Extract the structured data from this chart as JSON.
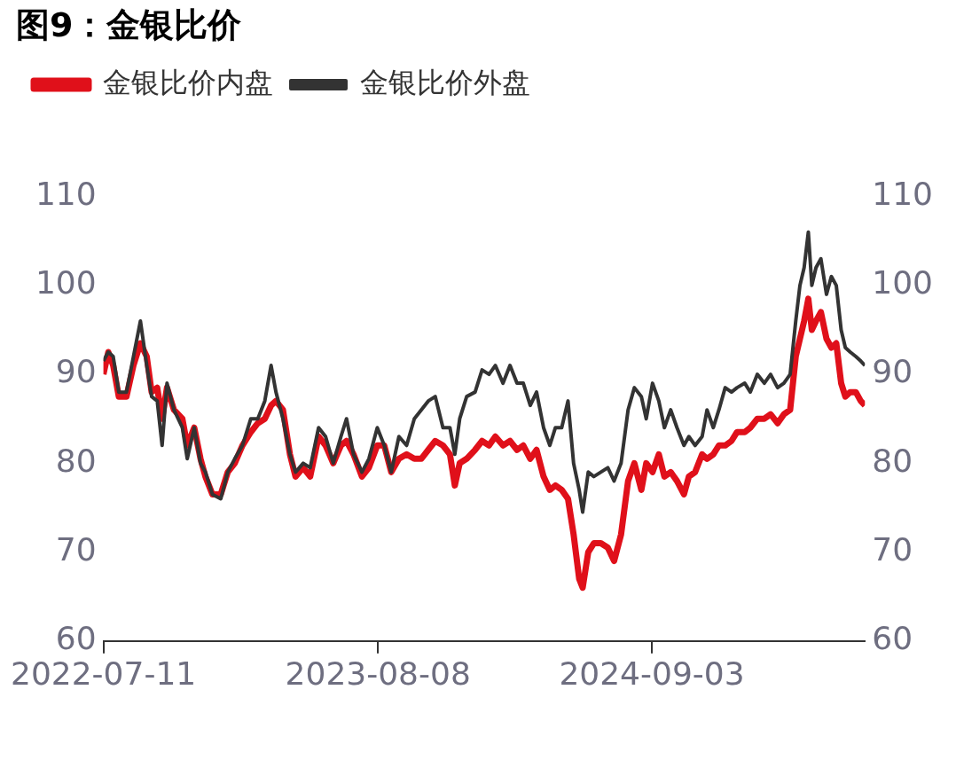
{
  "chart_data": {
    "type": "line",
    "title": "图9：金银比价",
    "x": [
      "2022-07-11",
      "2022-07-18",
      "2022-07-25",
      "2022-08-02",
      "2022-08-13",
      "2022-08-23",
      "2022-09-02",
      "2022-09-11",
      "2022-09-18",
      "2022-09-26",
      "2022-10-03",
      "2022-10-10",
      "2022-10-20",
      "2022-11-01",
      "2022-11-08",
      "2022-11-18",
      "2022-11-27",
      "2022-12-04",
      "2022-12-14",
      "2022-12-26",
      "2023-01-05",
      "2023-01-15",
      "2023-01-26",
      "2023-02-07",
      "2023-02-17",
      "2023-02-27",
      "2023-03-08",
      "2023-03-15",
      "2023-03-25",
      "2023-04-04",
      "2023-04-12",
      "2023-04-23",
      "2023-05-03",
      "2023-05-15",
      "2023-05-25",
      "2023-06-05",
      "2023-06-16",
      "2023-06-24",
      "2023-07-04",
      "2023-07-16",
      "2023-07-26",
      "2023-08-07",
      "2023-08-17",
      "2023-08-27",
      "2023-09-07",
      "2023-09-18",
      "2023-09-29",
      "2023-10-09",
      "2023-10-19",
      "2023-10-29",
      "2023-11-09",
      "2023-11-19",
      "2023-11-26",
      "2023-12-03",
      "2023-12-13",
      "2023-12-25",
      "2024-01-04",
      "2024-01-14",
      "2024-01-23",
      "2024-02-03",
      "2024-02-13",
      "2024-02-23",
      "2024-03-03",
      "2024-03-13",
      "2024-03-22",
      "2024-04-01",
      "2024-04-10",
      "2024-04-18",
      "2024-04-27",
      "2024-05-06",
      "2024-05-14",
      "2024-05-22",
      "2024-05-27",
      "2024-06-04",
      "2024-06-12",
      "2024-06-22",
      "2024-07-02",
      "2024-07-11",
      "2024-07-21",
      "2024-07-31",
      "2024-08-09",
      "2024-08-19",
      "2024-08-26",
      "2024-09-04",
      "2024-09-13",
      "2024-09-21",
      "2024-09-30",
      "2024-10-09",
      "2024-10-19",
      "2024-10-26",
      "2024-11-04",
      "2024-11-14",
      "2024-11-21",
      "2024-11-30",
      "2024-12-08",
      "2024-12-17",
      "2024-12-26",
      "2025-01-03",
      "2025-01-14",
      "2025-01-22",
      "2025-02-01",
      "2025-02-11",
      "2025-02-20",
      "2025-03-02",
      "2025-03-11",
      "2025-03-20",
      "2025-03-28",
      "2025-04-03",
      "2025-04-09",
      "2025-04-15",
      "2025-04-20",
      "2025-04-26",
      "2025-05-03",
      "2025-05-11",
      "2025-05-18",
      "2025-05-25",
      "2025-06-01",
      "2025-06-07",
      "2025-06-14",
      "2025-06-22",
      "2025-06-29",
      "2025-07-05"
    ],
    "series": [
      {
        "name": "金银比价内盘",
        "color": "#e0101a",
        "values": [
          90,
          92.5,
          91,
          87.5,
          87.5,
          91,
          93.5,
          92,
          88,
          88.5,
          85,
          88.5,
          86,
          85,
          82,
          84,
          80.5,
          78.5,
          76.5,
          76.5,
          79,
          80,
          82,
          83.5,
          84.5,
          85,
          86.5,
          87,
          86,
          81,
          78.5,
          79.5,
          78.5,
          83,
          82,
          80,
          82,
          82.5,
          81,
          78.5,
          79.5,
          82,
          82,
          79,
          80.5,
          81,
          80.5,
          80.5,
          81.5,
          82.5,
          82,
          81,
          77.5,
          80,
          80.5,
          81.5,
          82.5,
          82,
          83,
          82,
          82.5,
          81.5,
          82,
          80.5,
          81.5,
          78.5,
          77,
          77.5,
          77,
          76,
          72,
          67,
          66,
          70,
          71,
          71,
          70.5,
          69,
          72,
          78,
          80,
          77,
          80,
          79,
          81,
          78.5,
          79,
          78,
          76.5,
          78.5,
          79,
          81,
          80.5,
          81,
          82,
          82,
          82.5,
          83.5,
          83.5,
          84,
          85,
          85,
          85.5,
          84.5,
          85.5,
          86,
          92,
          94,
          96,
          98.5,
          95,
          96,
          97,
          94,
          93,
          93.5,
          89,
          87.5,
          88,
          88,
          87,
          86.5
        ]
      },
      {
        "name": "金银比价外盘",
        "color": "#333333",
        "values": [
          91.5,
          92.5,
          92,
          88,
          88,
          92,
          96,
          91,
          87.5,
          87,
          82,
          89,
          86,
          84,
          80.5,
          84,
          80,
          79,
          76.5,
          76,
          79,
          80.5,
          82,
          85,
          85,
          87,
          91,
          88,
          85,
          81,
          79,
          80,
          79.5,
          84,
          83,
          80,
          83,
          85,
          81,
          79,
          80.5,
          84,
          82,
          79,
          83,
          82,
          85,
          86,
          87,
          87.5,
          84,
          84,
          81,
          85,
          87.5,
          88,
          90.5,
          90,
          91,
          89,
          91,
          89,
          89,
          86.5,
          88,
          84,
          82,
          84,
          84,
          87,
          80,
          77,
          74.5,
          79,
          78.5,
          79,
          79.5,
          78,
          80,
          86,
          88.5,
          87.5,
          85,
          89,
          87,
          84,
          86,
          84,
          82,
          83,
          82,
          83,
          86,
          84,
          86,
          88.5,
          88,
          88.5,
          89,
          88,
          90,
          89,
          90,
          88.5,
          89,
          90,
          96,
          100,
          102,
          106,
          100,
          102,
          103,
          99,
          101,
          100,
          95,
          93,
          92.5,
          92,
          91.5,
          91
        ]
      }
    ],
    "xlim": [
      "2022-07-11",
      "2025-07-05"
    ],
    "xticks": [
      "2022-07-11",
      "2023-08-08",
      "2024-09-03"
    ],
    "ylim": [
      60,
      110
    ],
    "yticks": [
      60,
      70,
      80,
      90,
      100,
      110
    ],
    "y2lim": [
      60,
      110
    ],
    "y2ticks": [
      60,
      70,
      80,
      90,
      100,
      110
    ],
    "legend": "top left",
    "grid": false,
    "marker": "none",
    "line_style": "solid"
  }
}
